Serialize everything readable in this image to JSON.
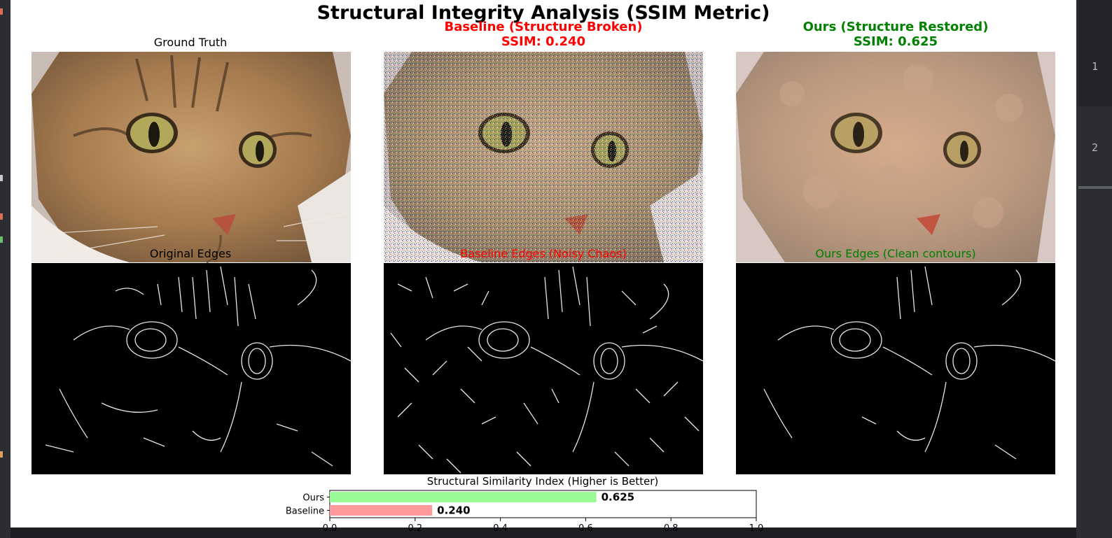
{
  "figure": {
    "title": "Structural Integrity Analysis (SSIM Metric)"
  },
  "panels": {
    "ground_truth": {
      "title": "Ground Truth",
      "edges_label": "Original Edges",
      "color": "#000000"
    },
    "baseline": {
      "title": "Baseline (Structure Broken)",
      "ssim_label": "SSIM: 0.240",
      "edges_label": "Baseline Edges (Noisy Chaos)",
      "color": "#ff0000"
    },
    "ours": {
      "title": "Ours (Structure Restored)",
      "ssim_label": "SSIM: 0.625",
      "edges_label": "Ours Edges (Clean contours)",
      "color": "#008000"
    }
  },
  "chart_data": {
    "type": "bar",
    "orientation": "horizontal",
    "title": "Structural Similarity Index (Higher is Better)",
    "categories": [
      "Ours",
      "Baseline"
    ],
    "values": [
      0.625,
      0.24
    ],
    "value_labels": [
      "0.625",
      "0.240"
    ],
    "colors": [
      "#98fb98",
      "#ff9999"
    ],
    "xlim": [
      0.0,
      1.0
    ],
    "x_ticks": [
      "0.0",
      "0.2",
      "0.4",
      "0.6",
      "0.8",
      "1.0"
    ]
  },
  "editor_gutter": {
    "line_numbers": [
      "1",
      "2"
    ]
  }
}
